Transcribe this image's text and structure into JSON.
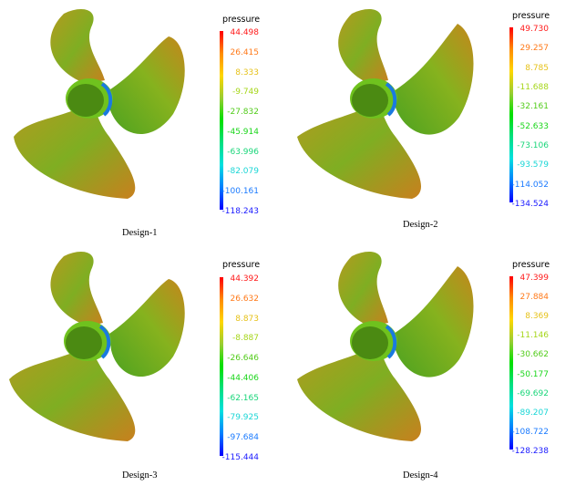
{
  "legend_title": "pressure",
  "panels": [
    {
      "caption": "Design-1",
      "ticks": [
        {
          "label": "44.498",
          "color": "#ff1a1a"
        },
        {
          "label": "26.415",
          "color": "#ff7a1a"
        },
        {
          "label": "8.333",
          "color": "#e6c21a"
        },
        {
          "label": "-9.749",
          "color": "#a6d61a"
        },
        {
          "label": "-27.832",
          "color": "#52cc1a"
        },
        {
          "label": "-45.914",
          "color": "#1ad61a"
        },
        {
          "label": "-63.996",
          "color": "#1ad67a"
        },
        {
          "label": "-82.079",
          "color": "#1ad6d6"
        },
        {
          "label": "-100.161",
          "color": "#1a7aff"
        },
        {
          "label": "-118.243",
          "color": "#1a1aff"
        }
      ]
    },
    {
      "caption": "Design-2",
      "ticks": [
        {
          "label": "49.730",
          "color": "#ff1a1a"
        },
        {
          "label": "29.257",
          "color": "#ff7a1a"
        },
        {
          "label": "8.785",
          "color": "#e6c21a"
        },
        {
          "label": "-11.688",
          "color": "#a6d61a"
        },
        {
          "label": "-32.161",
          "color": "#52cc1a"
        },
        {
          "label": "-52.633",
          "color": "#1ad61a"
        },
        {
          "label": "-73.106",
          "color": "#1ad67a"
        },
        {
          "label": "-93.579",
          "color": "#1ad6d6"
        },
        {
          "label": "-114.052",
          "color": "#1a7aff"
        },
        {
          "label": "-134.524",
          "color": "#1a1aff"
        }
      ]
    },
    {
      "caption": "Design-3",
      "ticks": [
        {
          "label": "44.392",
          "color": "#ff1a1a"
        },
        {
          "label": "26.632",
          "color": "#ff7a1a"
        },
        {
          "label": "8.873",
          "color": "#e6c21a"
        },
        {
          "label": "-8.887",
          "color": "#a6d61a"
        },
        {
          "label": "-26.646",
          "color": "#52cc1a"
        },
        {
          "label": "-44.406",
          "color": "#1ad61a"
        },
        {
          "label": "-62.165",
          "color": "#1ad67a"
        },
        {
          "label": "-79.925",
          "color": "#1ad6d6"
        },
        {
          "label": "-97.684",
          "color": "#1a7aff"
        },
        {
          "label": "-115.444",
          "color": "#1a1aff"
        }
      ]
    },
    {
      "caption": "Design-4",
      "ticks": [
        {
          "label": "47.399",
          "color": "#ff1a1a"
        },
        {
          "label": "27.884",
          "color": "#ff7a1a"
        },
        {
          "label": "8.369",
          "color": "#e6c21a"
        },
        {
          "label": "-11.146",
          "color": "#a6d61a"
        },
        {
          "label": "-30.662",
          "color": "#52cc1a"
        },
        {
          "label": "-50.177",
          "color": "#1ad61a"
        },
        {
          "label": "-69.692",
          "color": "#1ad67a"
        },
        {
          "label": "-89.207",
          "color": "#1ad6d6"
        },
        {
          "label": "-108.722",
          "color": "#1a7aff"
        },
        {
          "label": "-128.238",
          "color": "#1a1aff"
        }
      ]
    }
  ]
}
